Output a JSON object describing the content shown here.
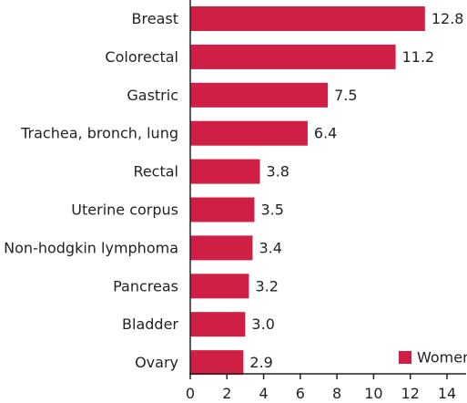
{
  "chart_data": {
    "type": "bar",
    "orientation": "horizontal",
    "categories": [
      "Breast",
      "Colorectal",
      "Gastric",
      "Trachea, bronch, lung",
      "Rectal",
      "Uterine corpus",
      "Non-hodgkin lymphoma",
      "Pancreas",
      "Bladder",
      "Ovary"
    ],
    "series": [
      {
        "name": "Women",
        "values": [
          12.8,
          11.2,
          7.5,
          6.4,
          3.8,
          3.5,
          3.4,
          3.2,
          3.0,
          2.9
        ],
        "value_labels": [
          "12.8",
          "11.2",
          "7.5",
          "6.4",
          "3.8",
          "3.5",
          "3.4",
          "3.2",
          "3.0",
          "2.9"
        ],
        "color": "#d01f45"
      }
    ],
    "xlim": [
      0,
      14
    ],
    "xticks": [
      "0",
      "2",
      "4",
      "6",
      "8",
      "10",
      "12",
      "14"
    ],
    "grid": false,
    "legend_position": "bottom-right"
  }
}
